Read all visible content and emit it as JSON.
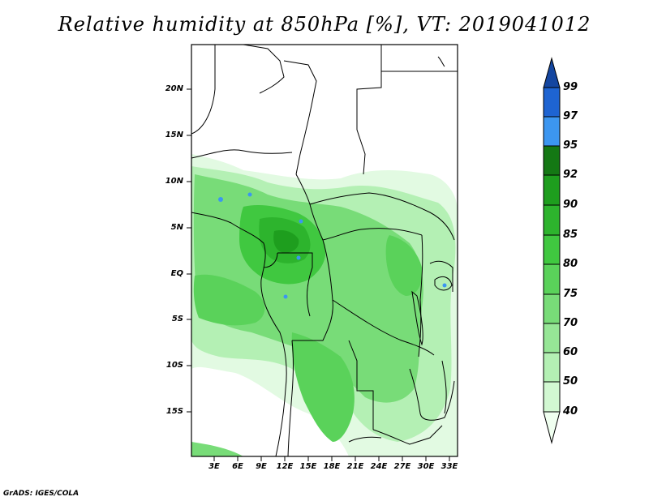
{
  "title": "Relative humidity at 850hPa [%], VT: 2019041012",
  "credit": "GrADS: IGES/COLA",
  "map": {
    "variable": "Relative humidity at 850hPa",
    "unit": "%",
    "valid_time": "2019041012",
    "lon_range_deg": [
      0,
      34
    ],
    "lat_range_deg": [
      -20,
      25
    ],
    "lat_ticks": [
      "20N",
      "15N",
      "10N",
      "5N",
      "EQ",
      "5S",
      "10S",
      "15S"
    ],
    "lon_ticks": [
      "3E",
      "6E",
      "9E",
      "12E",
      "15E",
      "18E",
      "21E",
      "24E",
      "27E",
      "30E",
      "33E"
    ]
  },
  "colorbar": {
    "levels": [
      "40",
      "50",
      "60",
      "70",
      "75",
      "80",
      "85",
      "90",
      "92",
      "95",
      "97",
      "99"
    ],
    "colors": [
      "#f0fff0",
      "#d2f8d2",
      "#b4f0b4",
      "#96e696",
      "#78dc78",
      "#5ad25a",
      "#40c840",
      "#2db42d",
      "#1e9e1e",
      "#147814",
      "#3c96f0",
      "#1e64d2",
      "#1446a0"
    ]
  }
}
